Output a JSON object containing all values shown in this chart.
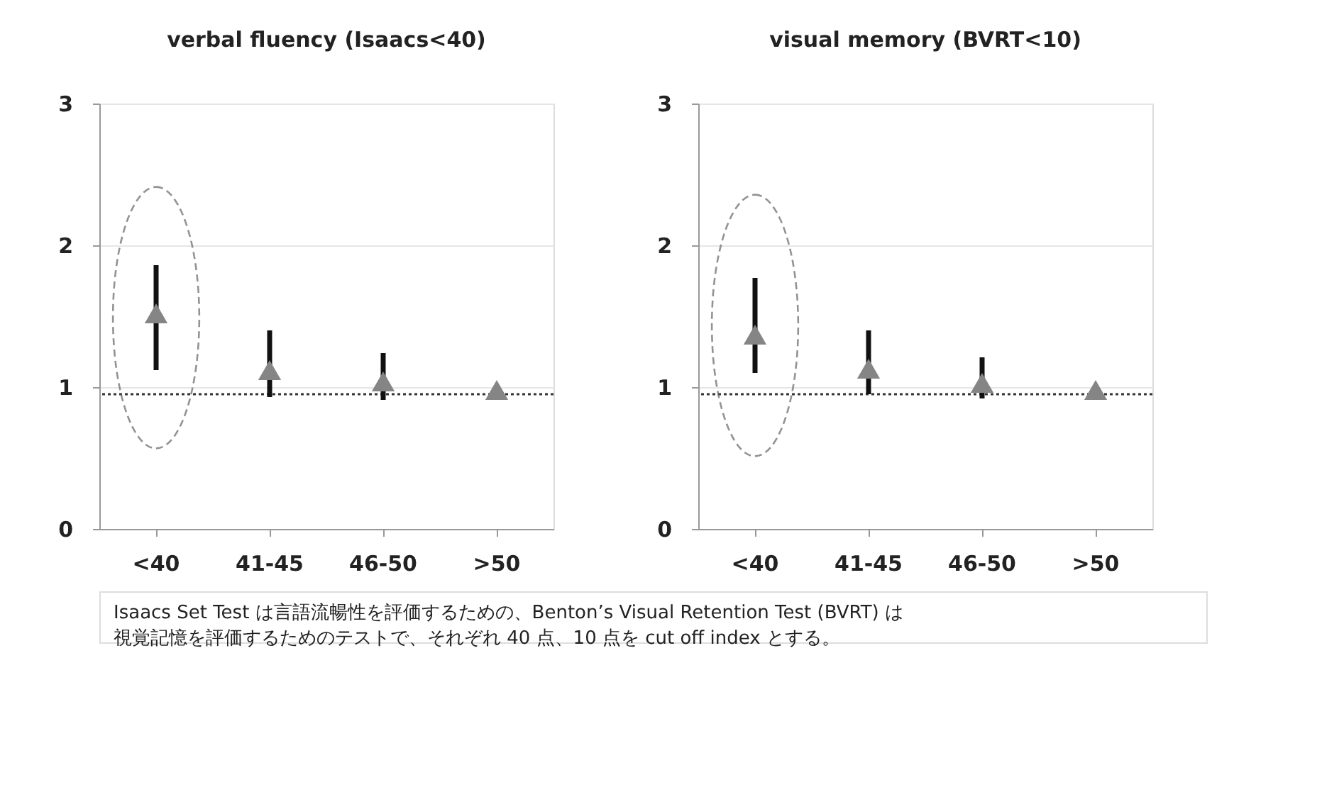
{
  "chart_data": [
    {
      "type": "scatter",
      "title": "verbal fluency (Isaacs<40)",
      "categories": [
        "<40",
        "41-45",
        "46-50",
        ">50"
      ],
      "series": [
        {
          "color": "#858585",
          "values": [
            1.52,
            1.12,
            1.04,
            0.98
          ],
          "errors": [
            [
              1.12,
              1.86
            ],
            [
              0.93,
              1.4
            ],
            [
              0.91,
              1.24
            ],
            null
          ]
        }
      ],
      "ylim": [
        0,
        3
      ],
      "yticks": [
        0,
        1,
        2,
        3
      ],
      "grid": "y",
      "marker": "triangle",
      "ref_lines": [
        {
          "axis": "y",
          "value": 0.95,
          "line_style": "dotted",
          "color": "#333333"
        }
      ],
      "annotations": [
        "Isaacs Set Test は言語流暢性を評価するための、Benton’s Visual Retention Test (BVRT) は",
        "視覚記憶を評価するためのテストで、それぞれ 40 点、10 点を cut off index とする。"
      ]
    },
    {
      "type": "scatter",
      "title": "visual memory (BVRT<10)",
      "categories": [
        "<40",
        "41-45",
        "46-50",
        ">50"
      ],
      "series": [
        {
          "color": "#858585",
          "values": [
            1.37,
            1.13,
            1.03,
            0.98
          ],
          "errors": [
            [
              1.1,
              1.77
            ],
            [
              0.95,
              1.4
            ],
            [
              0.92,
              1.21
            ],
            null
          ]
        }
      ],
      "ylim": [
        0,
        3
      ],
      "yticks": [
        0,
        1,
        2,
        3
      ],
      "grid": "y",
      "marker": "triangle",
      "ref_lines": [
        {
          "axis": "y",
          "value": 0.95,
          "line_style": "dotted",
          "color": "#333333"
        }
      ]
    }
  ]
}
